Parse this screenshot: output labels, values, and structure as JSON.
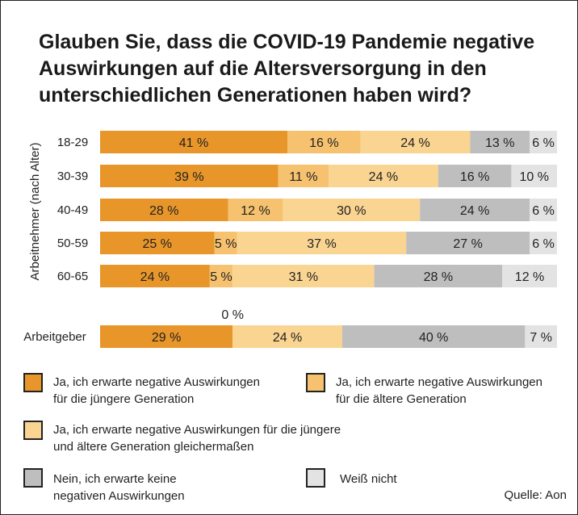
{
  "title": "Glauben Sie, dass die COVID-19 Pandemie negative Auswirkungen auf die Altersversorgung in den unterschiedlichen Generationen haben wird?",
  "source": "Quelle: Aon",
  "colors": {
    "young": "#E8962A",
    "old": "#F6C26F",
    "both": "#FAD491",
    "no": "#BEBEBE",
    "unknown": "#E3E3E3"
  },
  "chart_data": {
    "type": "bar",
    "orientation": "horizontal",
    "stacked": true,
    "unit": "%",
    "group_label": "Arbeitnehmer (nach Alter)",
    "categories": [
      "18-29",
      "30-39",
      "40-49",
      "50-59",
      "60-65",
      "Arbeitgeber"
    ],
    "series": [
      {
        "key": "young",
        "name": "Ja, ich erwarte negative Auswirkungen für die jüngere Generation",
        "values": [
          41,
          39,
          28,
          25,
          24,
          29
        ],
        "labels": [
          "41 %",
          "39 %",
          "28 %",
          "25 %",
          "24 %",
          "29 %"
        ]
      },
      {
        "key": "old",
        "name": "Ja, ich erwarte negative Auswirkungen für die ältere Generation",
        "values": [
          16,
          11,
          12,
          5,
          5,
          0
        ],
        "labels": [
          "16 %",
          "11 %",
          "12 %",
          "5 %",
          "5 %",
          "0 %"
        ]
      },
      {
        "key": "both",
        "name": "Ja, ich erwarte negative Auswirkungen für die jüngere und ältere Generation gleichermaßen",
        "values": [
          24,
          24,
          30,
          37,
          31,
          24
        ],
        "labels": [
          "24 %",
          "24 %",
          "30 %",
          "37 %",
          "31 %",
          "24 %"
        ]
      },
      {
        "key": "no",
        "name": "Nein, ich erwarte keine negativen Auswirkungen",
        "values": [
          13,
          16,
          24,
          27,
          28,
          40
        ],
        "labels": [
          "13 %",
          "16 %",
          "24 %",
          "27 %",
          "28 %",
          "40 %"
        ]
      },
      {
        "key": "unknown",
        "name": "Weiß nicht",
        "values": [
          6,
          10,
          6,
          6,
          12,
          7
        ],
        "labels": [
          "6 %",
          "10 %",
          "6 %",
          "6 %",
          "12 %",
          "7 %"
        ]
      }
    ]
  },
  "legend": [
    {
      "key": "young",
      "line1": "Ja, ich erwarte negative Auswirkungen",
      "line2": "für die jüngere Generation"
    },
    {
      "key": "old",
      "line1": "Ja, ich erwarte negative Auswirkungen",
      "line2": "für die ältere Generation"
    },
    {
      "key": "both",
      "line1": "Ja, ich erwarte negative Auswirkungen für die  jüngere",
      "line2": "und ältere Generation gleichermaßen"
    },
    {
      "key": "no",
      "line1": "Nein, ich erwarte keine",
      "line2": "negativen Auswirkungen"
    },
    {
      "key": "unknown",
      "line1": "Weiß nicht",
      "line2": ""
    }
  ]
}
